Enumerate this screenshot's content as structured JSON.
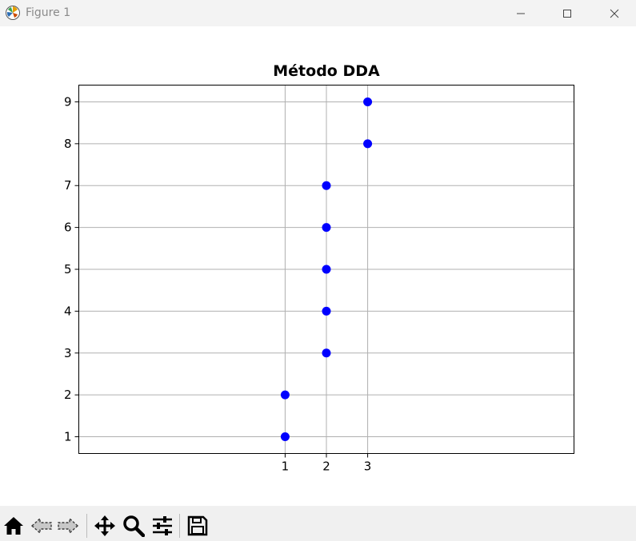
{
  "window": {
    "title": "Figure 1",
    "icons": [
      "matplotlib-logo-icon",
      "minimize-icon",
      "maximize-icon",
      "close-icon"
    ]
  },
  "toolbar": {
    "buttons": [
      "home-icon",
      "back-arrow-icon",
      "forward-arrow-icon",
      "pan-icon",
      "zoom-icon",
      "configure-subplots-icon",
      "save-icon"
    ]
  },
  "chart_data": {
    "type": "scatter",
    "title": "Método DDA",
    "xlabel": "",
    "ylabel": "",
    "x": [
      1,
      1,
      2,
      2,
      2,
      2,
      2,
      3,
      3
    ],
    "y": [
      1,
      2,
      3,
      4,
      5,
      6,
      7,
      8,
      9
    ],
    "xticks": [
      1,
      2,
      3
    ],
    "yticks": [
      1,
      2,
      3,
      4,
      5,
      6,
      7,
      8,
      9
    ],
    "xlim": [
      -4,
      8
    ],
    "ylim": [
      0.6,
      9.4
    ],
    "grid": true,
    "marker_color": "#0000ff"
  }
}
